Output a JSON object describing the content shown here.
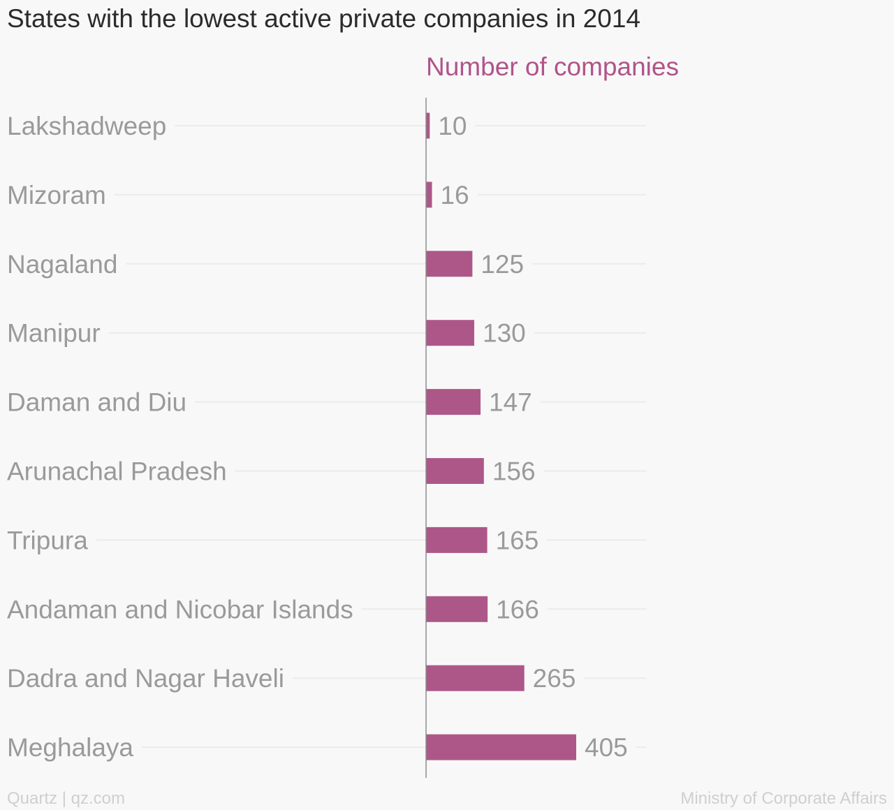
{
  "title": "States with the lowest active private companies in 2014",
  "source_left": "Quartz | qz.com",
  "source_right": "Ministry of Corporate Affairs",
  "colors": {
    "bar": "#ad5789",
    "label": "#9a9a9a",
    "gridline": "#ebebeb",
    "axis": "#8c8c8c",
    "series_label": "#b05489"
  },
  "chart_data": {
    "type": "bar",
    "orientation": "horizontal",
    "categories": [
      "Lakshadweep",
      "Mizoram",
      "Nagaland",
      "Manipur",
      "Daman and Diu",
      "Arunachal Pradesh",
      "Tripura",
      "Andaman and Nicobar Islands",
      "Dadra and Nagar Haveli",
      "Meghalaya"
    ],
    "series": [
      {
        "name": "Number of companies",
        "values": [
          10,
          16,
          125,
          130,
          147,
          156,
          165,
          166,
          265,
          405
        ],
        "labels": [
          "10",
          "16",
          "125",
          "130",
          "147",
          "156",
          "165",
          "166",
          "265",
          "405"
        ]
      }
    ],
    "title": "States with the lowest active private companies in 2014",
    "xlim": [
      0,
      405
    ],
    "grid": true,
    "data_labels": true
  }
}
